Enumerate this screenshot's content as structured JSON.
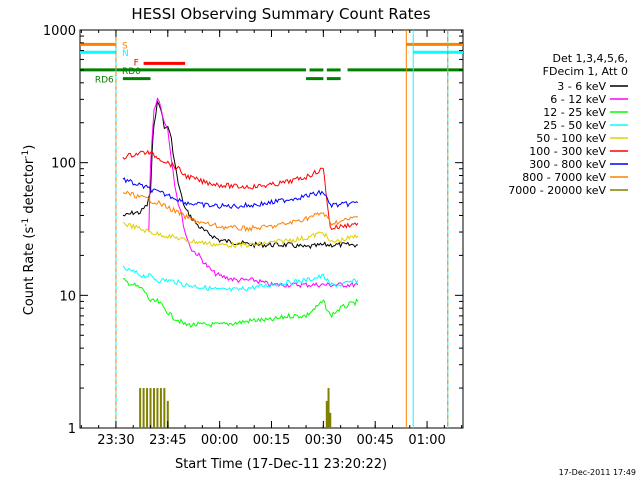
{
  "chart_data": {
    "type": "line",
    "title": "HESSI Observing Summary Count Rates",
    "xlabel": "Start Time (17-Dec-11 23:20:22)",
    "ylabel": "Count Rate (s⁻¹ detector⁻¹)",
    "ylabel_parts": [
      "Count Rate (s",
      "-1",
      " detector",
      "-1",
      ")"
    ],
    "yscale": "log",
    "ylim": [
      1,
      1000
    ],
    "xlim_minutes": [
      -10.4,
      100.4
    ],
    "x_ticks": [
      "23:30",
      "23:45",
      "00:00",
      "00:15",
      "00:30",
      "00:45",
      "01:00"
    ],
    "x_tick_minutes": [
      0,
      15,
      30,
      45,
      60,
      75,
      90
    ],
    "y_ticks": [
      "1",
      "10",
      "100",
      "1000"
    ],
    "y_tick_values": [
      1,
      10,
      100,
      1000
    ],
    "legend_header": [
      "Det 1,3,4,5,6,",
      "FDecim 1, Att 0"
    ],
    "legend_position": "right",
    "series": [
      {
        "name": "3 - 6 keV",
        "color": "#000000",
        "x": [
          2,
          3,
          5,
          7,
          8,
          9,
          10,
          10.5,
          11,
          12,
          13,
          14,
          15,
          16,
          17,
          18,
          19,
          20,
          22,
          24,
          26,
          28,
          30,
          35,
          40,
          45,
          50,
          55,
          60,
          65,
          70
        ],
        "y": [
          40,
          40,
          42,
          42,
          45,
          48,
          60,
          120,
          200,
          280,
          260,
          180,
          190,
          150,
          100,
          70,
          55,
          45,
          38,
          33,
          30,
          28,
          26,
          25,
          24,
          24,
          24,
          23,
          24,
          24,
          24
        ]
      },
      {
        "name": "6 - 12 keV",
        "color": "#ff00ff",
        "x": [
          9.5,
          10,
          11,
          12,
          13,
          14,
          15,
          16,
          17,
          18,
          19,
          20,
          21,
          22,
          24,
          26,
          28,
          30,
          35,
          40,
          45,
          50,
          55,
          60,
          65,
          70
        ],
        "y": [
          30,
          100,
          250,
          310,
          270,
          200,
          180,
          110,
          70,
          50,
          40,
          30,
          25,
          22,
          20,
          17,
          15,
          14,
          13,
          13,
          12,
          12,
          12,
          12,
          12,
          12
        ]
      },
      {
        "name": "12 - 25 keV",
        "color": "#00ff00",
        "x": [
          2,
          5,
          8,
          10,
          12,
          14,
          16,
          18,
          20,
          25,
          30,
          35,
          40,
          45,
          50,
          55,
          60,
          62,
          65,
          70
        ],
        "y": [
          13,
          12,
          11,
          9,
          9,
          8,
          7,
          6.5,
          6,
          6,
          6,
          6.2,
          6.5,
          6.5,
          7,
          7,
          9,
          7,
          8,
          9
        ]
      },
      {
        "name": "25 - 50 keV",
        "color": "#00ffff",
        "x": [
          2,
          5,
          8,
          10,
          12,
          15,
          18,
          20,
          25,
          30,
          35,
          40,
          45,
          50,
          55,
          60,
          62,
          65,
          70
        ],
        "y": [
          16,
          15,
          14,
          14,
          13,
          13,
          12.5,
          12,
          11.5,
          11,
          11,
          11.5,
          12,
          12.5,
          13,
          14,
          12,
          12,
          13
        ]
      },
      {
        "name": "50 - 100 keV",
        "color": "#e0d000",
        "x": [
          2,
          5,
          8,
          10,
          12,
          15,
          18,
          20,
          25,
          30,
          35,
          40,
          45,
          50,
          55,
          60,
          62,
          65,
          70
        ],
        "y": [
          35,
          33,
          31,
          30,
          29,
          28,
          27,
          26,
          25,
          24,
          24,
          24,
          25,
          26,
          27,
          30,
          25,
          26,
          28
        ]
      },
      {
        "name": "100 - 300 keV",
        "color": "#ff0000",
        "x": [
          2,
          5,
          8,
          10,
          12,
          15,
          18,
          20,
          25,
          30,
          35,
          40,
          45,
          50,
          55,
          60,
          62,
          65,
          70
        ],
        "y": [
          110,
          115,
          120,
          118,
          110,
          100,
          90,
          80,
          72,
          68,
          66,
          66,
          68,
          72,
          78,
          90,
          32,
          33,
          35
        ]
      },
      {
        "name": "300 - 800 keV",
        "color": "#0000ff",
        "x": [
          2,
          5,
          8,
          10,
          12,
          15,
          18,
          20,
          25,
          30,
          35,
          40,
          45,
          50,
          55,
          60,
          62,
          65,
          70
        ],
        "y": [
          75,
          70,
          66,
          63,
          60,
          57,
          53,
          50,
          48,
          47,
          47,
          48,
          50,
          53,
          56,
          60,
          48,
          48,
          50
        ]
      },
      {
        "name": "800 - 7000 keV",
        "color": "#ff8000",
        "x": [
          2,
          5,
          8,
          10,
          12,
          15,
          18,
          20,
          25,
          30,
          35,
          40,
          45,
          50,
          55,
          60,
          62,
          65,
          70
        ],
        "y": [
          60,
          57,
          54,
          52,
          50,
          46,
          42,
          39,
          35,
          33,
          32,
          32,
          33,
          35,
          38,
          42,
          35,
          36,
          39
        ]
      },
      {
        "name": "7000 - 20000 keV",
        "color": "#808000",
        "x": [
          7,
          8,
          9,
          10,
          11,
          12,
          13,
          14,
          15,
          61,
          61.5,
          62
        ],
        "y": [
          2,
          2,
          2,
          2,
          2,
          2,
          2,
          2,
          1.6,
          1.6,
          2,
          1.3
        ]
      }
    ],
    "state_bars": [
      {
        "label": "S",
        "color": "#ff8000",
        "y": 780,
        "segments": [
          [
            -10.4,
            0
          ],
          [
            84,
            100.4
          ]
        ]
      },
      {
        "label": "N",
        "color": "#00ffff",
        "y": 680,
        "segments": [
          [
            -10.4,
            0
          ],
          [
            86,
            100.4
          ]
        ]
      },
      {
        "label": "F",
        "color": "#ff0000",
        "y": 560,
        "segments": [
          [
            8,
            20
          ]
        ]
      },
      {
        "label": "RD0",
        "color": "#008000",
        "y": 500,
        "segments": [
          [
            -10.4,
            55
          ],
          [
            56,
            60
          ],
          [
            61,
            65
          ],
          [
            67,
            100.4
          ]
        ]
      },
      {
        "label": "RD6",
        "color": "#008000",
        "y": 430,
        "segments": [
          [
            2,
            10
          ],
          [
            55,
            60
          ],
          [
            61,
            65
          ]
        ]
      }
    ],
    "vertical_markers": [
      {
        "minute": 0,
        "color": "#00ffff",
        "dashed": false
      },
      {
        "minute": 0,
        "color": "#ff8000",
        "dashed": true
      },
      {
        "minute": 84,
        "color": "#ff8000",
        "dashed": false
      },
      {
        "minute": 86,
        "color": "#00ffff",
        "dashed": false
      },
      {
        "minute": 96,
        "color": "#00ffff",
        "dashed": false
      },
      {
        "minute": 96,
        "color": "#ff8000",
        "dashed": true
      }
    ]
  },
  "footer": {
    "timestamp": "17-Dec-2011 17:49"
  }
}
